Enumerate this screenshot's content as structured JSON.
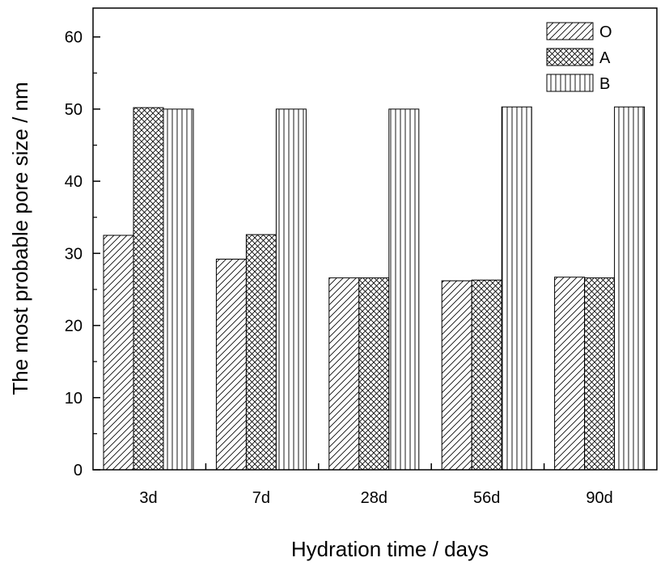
{
  "chart_data": {
    "type": "bar",
    "categories": [
      "3d",
      "7d",
      "28d",
      "56d",
      "90d"
    ],
    "series": [
      {
        "name": "O",
        "pattern": "diagonal-hatch",
        "values": [
          32.5,
          29.2,
          26.6,
          26.2,
          26.7
        ]
      },
      {
        "name": "A",
        "pattern": "cross-hatch",
        "values": [
          50.2,
          32.6,
          26.6,
          26.3,
          26.6
        ]
      },
      {
        "name": "B",
        "pattern": "vertical-lines",
        "values": [
          50.0,
          50.0,
          50.0,
          50.3,
          50.3
        ]
      }
    ],
    "title": "",
    "xlabel": "Hydration time / days",
    "ylabel": "The most probable pore size / nm",
    "ylim": [
      0,
      64
    ],
    "yticks": [
      0,
      10,
      20,
      30,
      40,
      50,
      60
    ],
    "grid": false,
    "legend_position": "top-right",
    "bar_fill": "#ffffff",
    "stroke_color": "#000000"
  }
}
